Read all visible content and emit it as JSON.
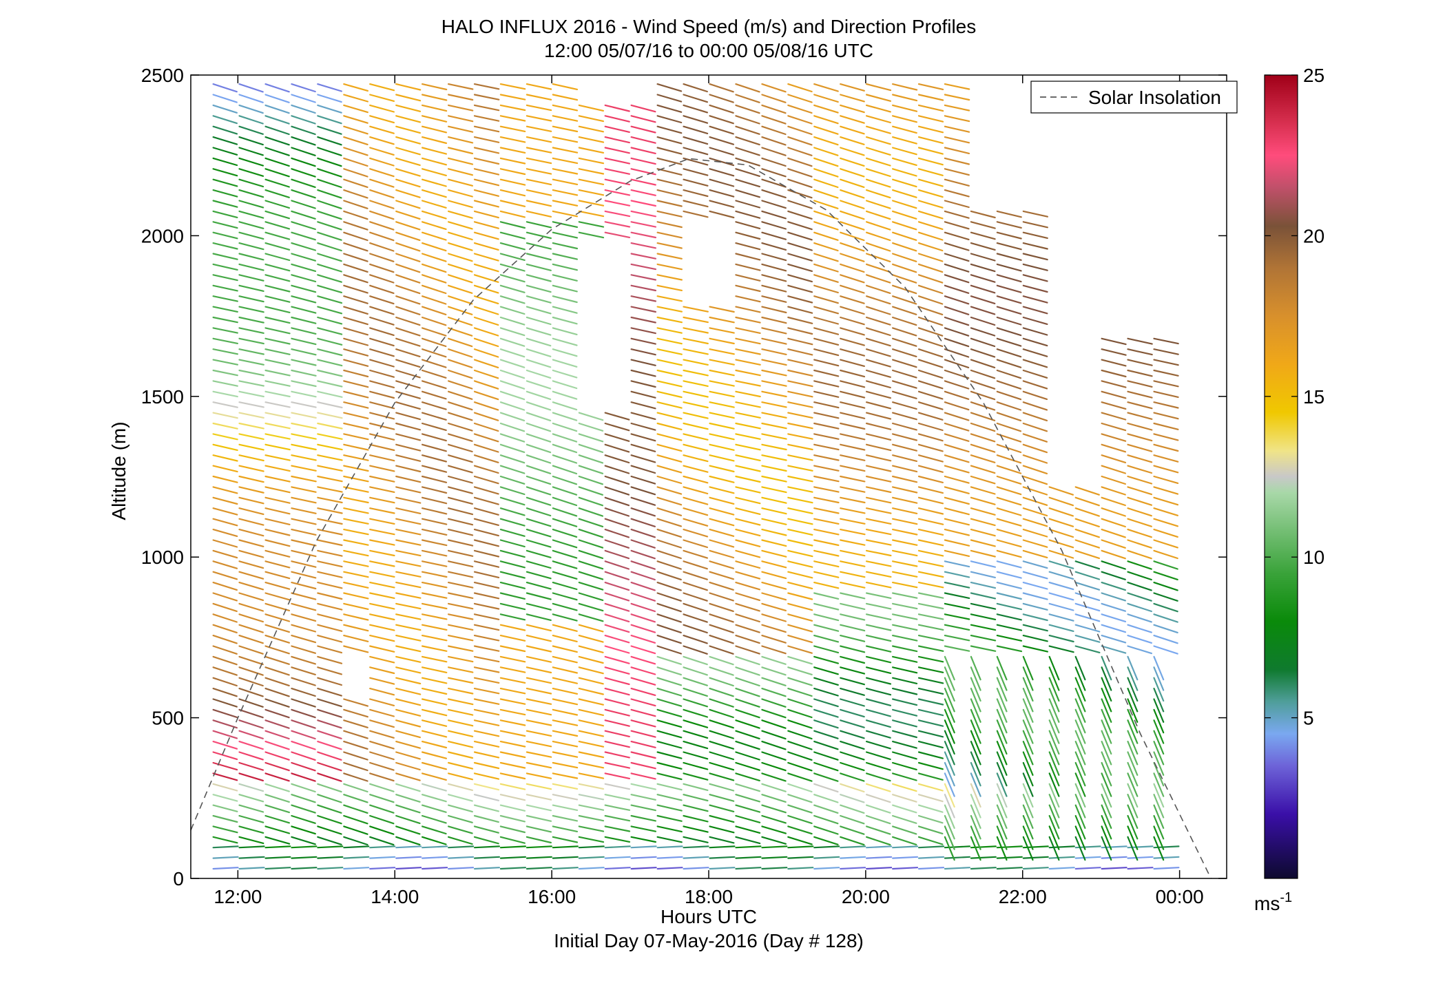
{
  "chart_data": {
    "type": "wind_barb_profile",
    "title": "HALO INFLUX 2016 - Wind Speed (m/s) and Direction Profiles",
    "subtitle": "12:00 05/07/16 to 00:00 05/08/16  UTC",
    "xlabel": "Hours UTC",
    "xlabel2": "Initial Day 07-May-2016 (Day # 128)",
    "ylabel": "Altitude (m)",
    "x_range_hours": [
      11.4,
      24.6
    ],
    "x_ticks": [
      {
        "hour": 12,
        "label": "12:00"
      },
      {
        "hour": 14,
        "label": "14:00"
      },
      {
        "hour": 16,
        "label": "16:00"
      },
      {
        "hour": 18,
        "label": "18:00"
      },
      {
        "hour": 20,
        "label": "20:00"
      },
      {
        "hour": 22,
        "label": "22:00"
      },
      {
        "hour": 24,
        "label": "00:00"
      }
    ],
    "ylim": [
      0,
      2500
    ],
    "y_ticks": [
      0,
      500,
      1000,
      1500,
      2000,
      2500
    ],
    "colorbar": {
      "range": [
        0,
        25
      ],
      "ticks": [
        5,
        10,
        15,
        20,
        25
      ],
      "unit_label": "ms",
      "unit_exponent": "-1"
    },
    "legend": {
      "position": "top-right",
      "entries": [
        "Solar Insolation"
      ]
    },
    "solar_insolation_curve": {
      "style": "dashed",
      "color": "#555555",
      "points": [
        [
          11.4,
          150
        ],
        [
          12.0,
          500
        ],
        [
          13.0,
          1050
        ],
        [
          14.0,
          1480
        ],
        [
          15.0,
          1800
        ],
        [
          16.0,
          2020
        ],
        [
          17.0,
          2170
        ],
        [
          17.75,
          2240
        ],
        [
          18.5,
          2220
        ],
        [
          19.5,
          2080
        ],
        [
          20.5,
          1840
        ],
        [
          21.5,
          1480
        ],
        [
          22.5,
          1020
        ],
        [
          23.5,
          450
        ],
        [
          24.4,
          0
        ]
      ]
    },
    "profiles_time_range_hours": [
      11.8,
      23.8
    ],
    "profile_interval_hours": 0.333
  }
}
